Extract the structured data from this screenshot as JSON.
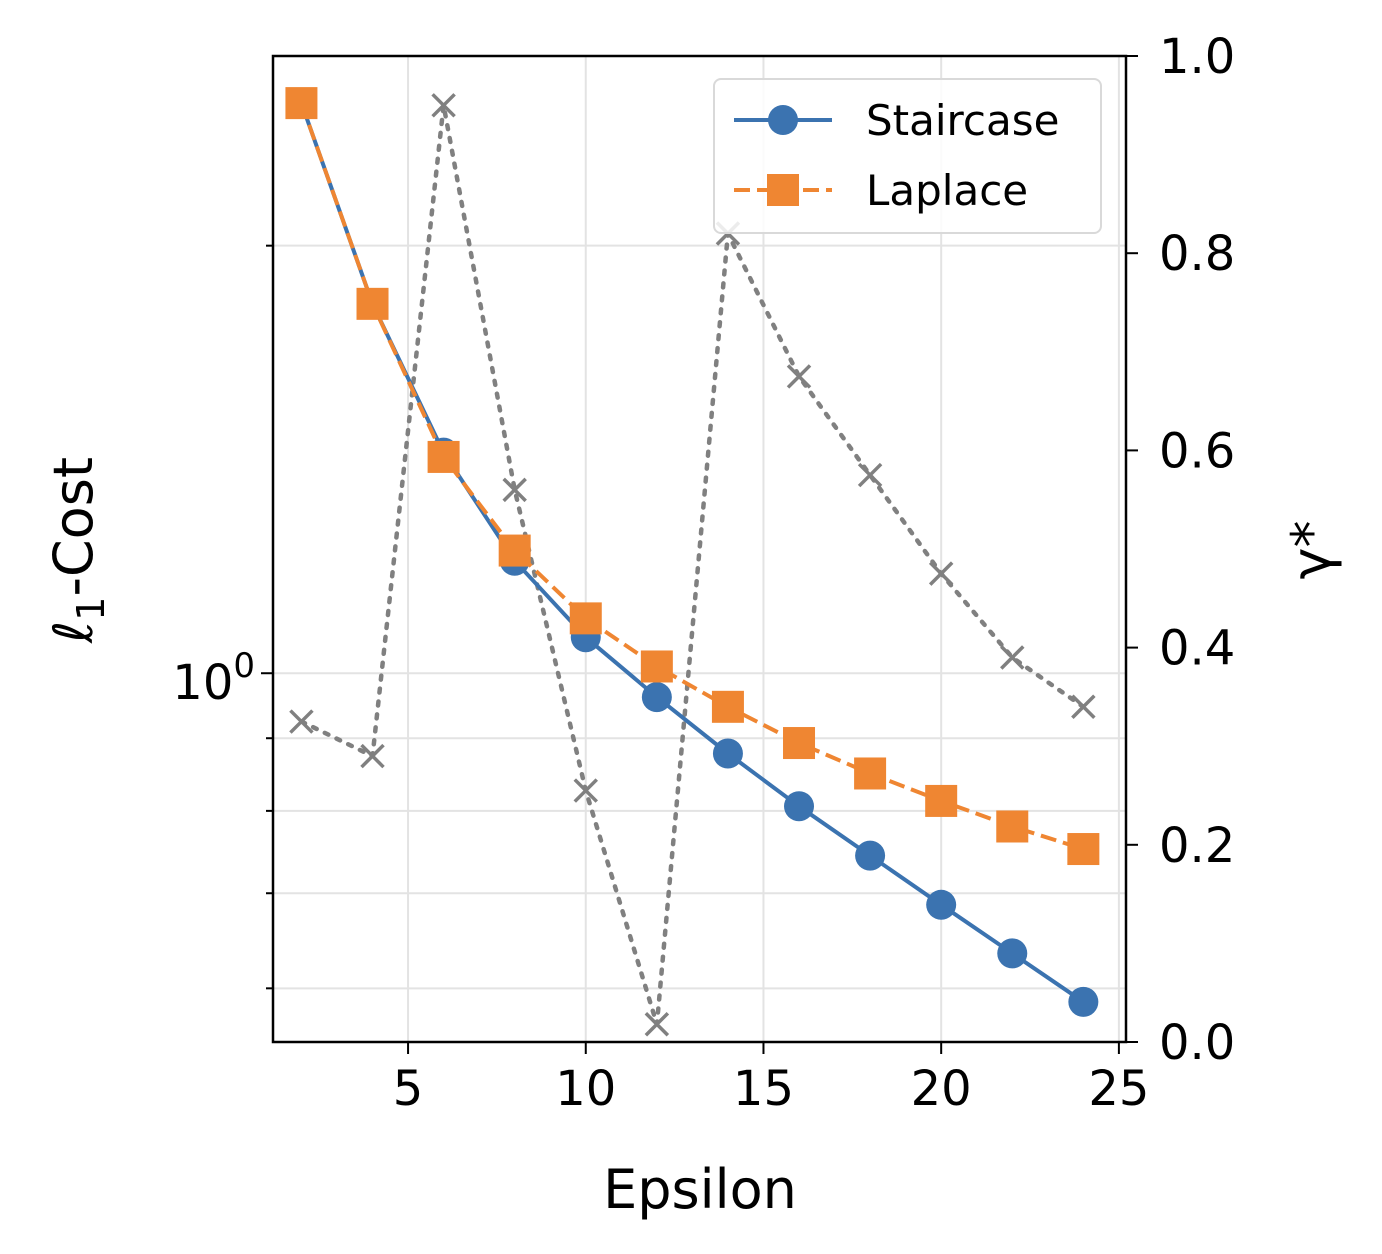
{
  "chart_data": {
    "type": "line",
    "x": [
      2,
      4,
      6,
      8,
      10,
      12,
      14,
      16,
      18,
      20,
      22,
      24
    ],
    "series": [
      {
        "name": "Staircase",
        "axis": "left",
        "color": "#3b73b0",
        "marker": "circle",
        "linestyle": "solid",
        "values": [
          2.52,
          1.82,
          1.43,
          1.2,
          1.06,
          0.962,
          0.878,
          0.806,
          0.744,
          0.687,
          0.635,
          0.587
        ]
      },
      {
        "name": "Laplace",
        "axis": "left",
        "color": "#ef8632",
        "marker": "square",
        "linestyle": "dashed",
        "values": [
          2.52,
          1.82,
          1.42,
          1.22,
          1.093,
          1.011,
          0.947,
          0.893,
          0.85,
          0.813,
          0.78,
          0.752
        ]
      },
      {
        "name": "γ*",
        "axis": "right",
        "color": "#808080",
        "marker": "x",
        "linestyle": "dotted",
        "show_in_legend": false,
        "values": [
          0.325,
          0.29,
          0.95,
          0.56,
          0.255,
          0.018,
          0.82,
          0.675,
          0.575,
          0.475,
          0.39,
          0.34
        ]
      }
    ],
    "xlabel": "Epsilon",
    "ylabel": "ℓ1-Cost",
    "ylabel_parts": {
      "main": "ℓ",
      "sub": "1",
      "rest": "-Cost"
    },
    "y2label": "γ*",
    "xlim": [
      1.2,
      25.2
    ],
    "xticks": [
      "5",
      "10",
      "15",
      "20",
      "25"
    ],
    "xtick_values": [
      5,
      10,
      15,
      20,
      25
    ],
    "ylim": [
      0.55,
      2.72
    ],
    "yscale": "log",
    "ytick_major": {
      "base": "10",
      "exp": "0"
    },
    "y2lim": [
      0,
      1
    ],
    "y2ticks": [
      "0.0",
      "0.2",
      "0.4",
      "0.6",
      "0.8",
      "1.0"
    ],
    "y2tick_values": [
      0,
      0.2,
      0.4,
      0.6,
      0.8,
      1.0
    ],
    "grid": true,
    "legend_position": "top-right"
  }
}
